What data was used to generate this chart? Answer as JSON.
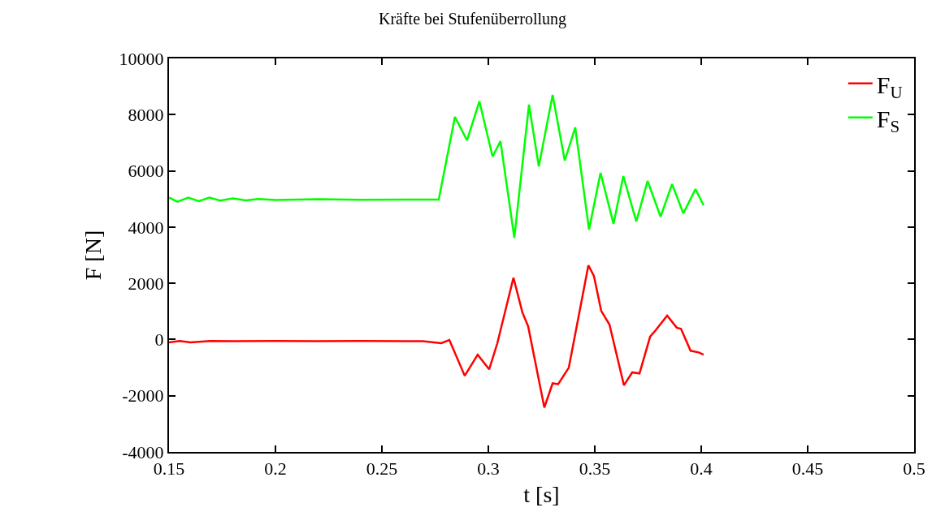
{
  "chart_data": {
    "type": "line",
    "title": "Kräfte bei Stufenüberrollung",
    "xlabel": "t [s]",
    "ylabel": "F [N]",
    "xlim": [
      0.15,
      0.5
    ],
    "xticks": [
      0.15,
      0.2,
      0.25,
      0.3,
      0.35,
      0.4,
      0.45,
      0.5
    ],
    "ylim": [
      -4000,
      10000
    ],
    "yticks": [
      -4000,
      -2000,
      0,
      2000,
      4000,
      6000,
      8000,
      10000
    ],
    "grid": false,
    "legend": "top right",
    "marker": "none",
    "line_style": "solid",
    "series": [
      {
        "name": "F$_{U}$",
        "color": "#ff0000",
        "x": [
          0.15,
          0.155,
          0.16,
          0.17,
          0.18,
          0.2,
          0.22,
          0.24,
          0.26,
          0.2691,
          0.2779,
          0.2817,
          0.2889,
          0.295,
          0.3004,
          0.3042,
          0.3118,
          0.316,
          0.3187,
          0.3263,
          0.3302,
          0.3328,
          0.3378,
          0.347,
          0.3496,
          0.353,
          0.3569,
          0.3637,
          0.3676,
          0.371,
          0.376,
          0.3786,
          0.384,
          0.3885,
          0.3905,
          0.395,
          0.3988,
          0.4011
        ],
        "values": [
          -100,
          -50,
          -100,
          -50,
          -60,
          -50,
          -60,
          -50,
          -60,
          -60,
          -130,
          -20,
          -1290,
          -540,
          -1060,
          -140,
          2200,
          960,
          470,
          -2420,
          -1560,
          -1590,
          -1000,
          2640,
          2260,
          1020,
          530,
          -1630,
          -1170,
          -1210,
          100,
          330,
          850,
          420,
          380,
          -400,
          -460,
          -540
        ]
      },
      {
        "name": "F$_{S}$",
        "color": "#00ff00",
        "x": [
          0.15,
          0.154,
          0.159,
          0.164,
          0.169,
          0.174,
          0.18,
          0.186,
          0.192,
          0.2,
          0.22,
          0.24,
          0.26,
          0.2767,
          0.2843,
          0.29,
          0.2958,
          0.302,
          0.3057,
          0.3122,
          0.3191,
          0.3237,
          0.3302,
          0.3359,
          0.3408,
          0.3473,
          0.3527,
          0.3588,
          0.3634,
          0.3695,
          0.3748,
          0.3809,
          0.3863,
          0.3916,
          0.3973,
          0.4011
        ],
        "values": [
          5050,
          4900,
          5050,
          4920,
          5050,
          4940,
          5020,
          4950,
          5000,
          4960,
          4990,
          4970,
          4980,
          4980,
          7920,
          7085,
          8470,
          6507,
          7055,
          3620,
          8355,
          6160,
          8700,
          6363,
          7546,
          3910,
          5930,
          4111,
          5815,
          4198,
          5640,
          4371,
          5525,
          4486,
          5350,
          4775
        ]
      }
    ]
  }
}
